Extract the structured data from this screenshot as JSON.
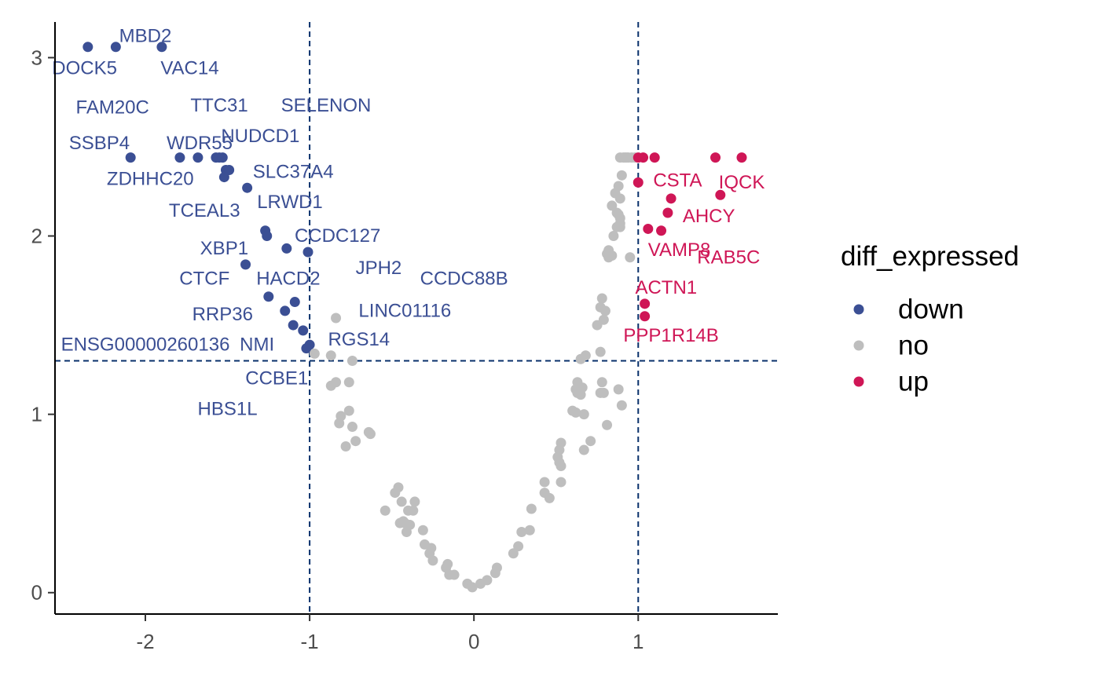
{
  "chart_data": {
    "type": "scatter",
    "title": "",
    "xlabel": "",
    "ylabel": "",
    "xlim": [
      -2.55,
      1.85
    ],
    "ylim": [
      -0.12,
      3.2
    ],
    "x_ticks": [
      -2,
      -1,
      0,
      1
    ],
    "x_tick_labels": [
      "-2",
      "-1",
      "0",
      "1"
    ],
    "y_ticks": [
      0,
      1,
      2,
      3
    ],
    "y_tick_labels": [
      "0",
      "1",
      "2",
      "3"
    ],
    "grid": false,
    "reference_lines": {
      "vertical": [
        -1,
        1
      ],
      "horizontal": [
        1.3
      ],
      "style": "dashed",
      "color": "#08306b"
    },
    "legend": {
      "title": "diff_expressed",
      "position": "right",
      "entries": [
        {
          "key": "down",
          "label": "down",
          "color": "#3b4f94"
        },
        {
          "key": "no",
          "label": "no",
          "color": "#bebebe"
        },
        {
          "key": "up",
          "label": "up",
          "color": "#cf1656"
        }
      ]
    },
    "series": [
      {
        "key": "down",
        "points": [
          [
            -2.35,
            3.06
          ],
          [
            -2.18,
            3.06
          ],
          [
            -1.9,
            3.06
          ],
          [
            -2.09,
            2.44
          ],
          [
            -1.79,
            2.44
          ],
          [
            -1.68,
            2.44
          ],
          [
            -1.57,
            2.44
          ],
          [
            -1.55,
            2.44
          ],
          [
            -1.53,
            2.44
          ],
          [
            -1.51,
            2.37
          ],
          [
            -1.49,
            2.37
          ],
          [
            -1.52,
            2.33
          ],
          [
            -1.38,
            2.27
          ],
          [
            -1.27,
            2.03
          ],
          [
            -1.26,
            2.0
          ],
          [
            -1.14,
            1.93
          ],
          [
            -1.01,
            1.91
          ],
          [
            -1.39,
            1.84
          ],
          [
            -1.25,
            1.66
          ],
          [
            -1.09,
            1.63
          ],
          [
            -1.15,
            1.58
          ],
          [
            -1.1,
            1.5
          ],
          [
            -1.04,
            1.47
          ],
          [
            -1.0,
            1.39
          ],
          [
            -1.02,
            1.37
          ]
        ]
      },
      {
        "key": "no",
        "points": [
          [
            -0.97,
            1.34
          ],
          [
            -0.87,
            1.33
          ],
          [
            -0.74,
            1.3
          ],
          [
            -0.84,
            1.54
          ],
          [
            -0.87,
            1.16
          ],
          [
            -0.84,
            1.18
          ],
          [
            -0.76,
            1.18
          ],
          [
            -0.76,
            1.02
          ],
          [
            -0.81,
            0.99
          ],
          [
            -0.82,
            0.95
          ],
          [
            -0.74,
            0.93
          ],
          [
            -0.78,
            0.82
          ],
          [
            -0.72,
            0.85
          ],
          [
            -0.64,
            0.9
          ],
          [
            -0.63,
            0.89
          ],
          [
            -0.46,
            0.59
          ],
          [
            -0.48,
            0.56
          ],
          [
            -0.44,
            0.51
          ],
          [
            -0.36,
            0.51
          ],
          [
            -0.37,
            0.46
          ],
          [
            -0.4,
            0.46
          ],
          [
            -0.54,
            0.46
          ],
          [
            -0.43,
            0.4
          ],
          [
            -0.45,
            0.39
          ],
          [
            -0.42,
            0.39
          ],
          [
            -0.39,
            0.38
          ],
          [
            -0.41,
            0.34
          ],
          [
            -0.31,
            0.35
          ],
          [
            -0.3,
            0.27
          ],
          [
            -0.26,
            0.25
          ],
          [
            -0.27,
            0.22
          ],
          [
            -0.25,
            0.18
          ],
          [
            -0.16,
            0.16
          ],
          [
            -0.17,
            0.14
          ],
          [
            -0.15,
            0.1
          ],
          [
            -0.12,
            0.1
          ],
          [
            -0.04,
            0.05
          ],
          [
            -0.01,
            0.03
          ],
          [
            0.04,
            0.05
          ],
          [
            0.08,
            0.07
          ],
          [
            0.13,
            0.11
          ],
          [
            0.14,
            0.14
          ],
          [
            0.24,
            0.22
          ],
          [
            0.27,
            0.26
          ],
          [
            0.29,
            0.34
          ],
          [
            0.34,
            0.35
          ],
          [
            0.35,
            0.47
          ],
          [
            0.43,
            0.62
          ],
          [
            0.43,
            0.56
          ],
          [
            0.46,
            0.53
          ],
          [
            0.51,
            0.76
          ],
          [
            0.52,
            0.8
          ],
          [
            0.53,
            0.84
          ],
          [
            0.52,
            0.73
          ],
          [
            0.53,
            0.71
          ],
          [
            0.53,
            0.62
          ],
          [
            0.6,
            1.02
          ],
          [
            0.62,
            1.01
          ],
          [
            0.62,
            1.14
          ],
          [
            0.63,
            1.12
          ],
          [
            0.65,
            1.11
          ],
          [
            0.66,
            1.15
          ],
          [
            0.67,
            1.0
          ],
          [
            0.67,
            0.8
          ],
          [
            0.71,
            0.85
          ],
          [
            0.63,
            1.18
          ],
          [
            0.65,
            1.31
          ],
          [
            0.68,
            1.33
          ],
          [
            0.77,
            1.35
          ],
          [
            0.78,
            1.18
          ],
          [
            0.77,
            1.12
          ],
          [
            0.79,
            1.12
          ],
          [
            0.75,
            1.5
          ],
          [
            0.79,
            1.53
          ],
          [
            0.77,
            1.6
          ],
          [
            0.8,
            1.58
          ],
          [
            0.78,
            1.65
          ],
          [
            0.81,
            0.94
          ],
          [
            0.88,
            1.14
          ],
          [
            0.9,
            1.05
          ],
          [
            0.81,
            1.9
          ],
          [
            0.82,
            1.88
          ],
          [
            0.84,
            1.89
          ],
          [
            0.82,
            1.92
          ],
          [
            0.95,
            1.88
          ],
          [
            0.85,
            2.0
          ],
          [
            0.87,
            2.05
          ],
          [
            0.88,
            2.12
          ],
          [
            0.89,
            2.05
          ],
          [
            0.89,
            2.07
          ],
          [
            0.87,
            2.13
          ],
          [
            0.84,
            2.17
          ],
          [
            0.89,
            2.1
          ],
          [
            0.86,
            2.24
          ],
          [
            0.89,
            2.21
          ],
          [
            0.88,
            2.28
          ],
          [
            0.9,
            2.34
          ],
          [
            0.89,
            2.44
          ],
          [
            0.91,
            2.44
          ],
          [
            0.92,
            2.44
          ],
          [
            0.93,
            2.44
          ],
          [
            0.94,
            2.44
          ],
          [
            0.96,
            2.44
          ],
          [
            0.98,
            2.44
          ]
        ]
      },
      {
        "key": "up",
        "points": [
          [
            1.0,
            2.44
          ],
          [
            1.03,
            2.44
          ],
          [
            1.1,
            2.44
          ],
          [
            1.47,
            2.44
          ],
          [
            1.63,
            2.44
          ],
          [
            1.0,
            2.3
          ],
          [
            1.5,
            2.23
          ],
          [
            1.2,
            2.21
          ],
          [
            1.18,
            2.13
          ],
          [
            1.06,
            2.04
          ],
          [
            1.14,
            2.03
          ],
          [
            1.04,
            1.62
          ],
          [
            1.04,
            1.55
          ]
        ]
      }
    ],
    "annotations": [
      {
        "text": "MBD2",
        "x": -2.0,
        "y": 3.12,
        "group": "down"
      },
      {
        "text": "DOCK5",
        "x": -2.37,
        "y": 2.94,
        "group": "down"
      },
      {
        "text": "VAC14",
        "x": -1.73,
        "y": 2.94,
        "group": "down"
      },
      {
        "text": "FAM20C",
        "x": -2.2,
        "y": 2.72,
        "group": "down"
      },
      {
        "text": "TTC31",
        "x": -1.55,
        "y": 2.73,
        "group": "down"
      },
      {
        "text": "SELENON",
        "x": -0.9,
        "y": 2.73,
        "group": "down"
      },
      {
        "text": "SSBP4",
        "x": -2.28,
        "y": 2.52,
        "group": "down"
      },
      {
        "text": "WDR55",
        "x": -1.67,
        "y": 2.52,
        "group": "down"
      },
      {
        "text": "NUDCD1",
        "x": -1.3,
        "y": 2.56,
        "group": "down"
      },
      {
        "text": "ZDHHC20",
        "x": -1.97,
        "y": 2.32,
        "group": "down"
      },
      {
        "text": "SLC37A4",
        "x": -1.1,
        "y": 2.36,
        "group": "down"
      },
      {
        "text": "TCEAL3",
        "x": -1.64,
        "y": 2.14,
        "group": "down"
      },
      {
        "text": "LRWD1",
        "x": -1.12,
        "y": 2.19,
        "group": "down"
      },
      {
        "text": "CCDC127",
        "x": -0.83,
        "y": 2.0,
        "group": "down"
      },
      {
        "text": "XBP1",
        "x": -1.52,
        "y": 1.93,
        "group": "down"
      },
      {
        "text": "JPH2",
        "x": -0.58,
        "y": 1.82,
        "group": "down"
      },
      {
        "text": "CCDC88B",
        "x": -0.06,
        "y": 1.76,
        "group": "down"
      },
      {
        "text": "CTCF",
        "x": -1.64,
        "y": 1.76,
        "group": "down"
      },
      {
        "text": "HACD2",
        "x": -1.13,
        "y": 1.76,
        "group": "down"
      },
      {
        "text": "LINC01116",
        "x": -0.42,
        "y": 1.58,
        "group": "down"
      },
      {
        "text": "RRP36",
        "x": -1.53,
        "y": 1.56,
        "group": "down"
      },
      {
        "text": "ENSG00000260136",
        "x": -2.0,
        "y": 1.39,
        "group": "down"
      },
      {
        "text": "NMI",
        "x": -1.32,
        "y": 1.39,
        "group": "down"
      },
      {
        "text": "RGS14",
        "x": -0.7,
        "y": 1.42,
        "group": "down"
      },
      {
        "text": "CCBE1",
        "x": -1.2,
        "y": 1.2,
        "group": "down"
      },
      {
        "text": "HBS1L",
        "x": -1.5,
        "y": 1.03,
        "group": "down"
      },
      {
        "text": "CSTA",
        "x": 1.24,
        "y": 2.31,
        "group": "up"
      },
      {
        "text": "IQCK",
        "x": 1.63,
        "y": 2.3,
        "group": "up"
      },
      {
        "text": "AHCY",
        "x": 1.43,
        "y": 2.11,
        "group": "up"
      },
      {
        "text": "VAMP8",
        "x": 1.25,
        "y": 1.92,
        "group": "up"
      },
      {
        "text": "RAB5C",
        "x": 1.55,
        "y": 1.88,
        "group": "up"
      },
      {
        "text": "ACTN1",
        "x": 1.17,
        "y": 1.71,
        "group": "up"
      },
      {
        "text": "PPP1R14B",
        "x": 1.2,
        "y": 1.44,
        "group": "up"
      }
    ]
  }
}
